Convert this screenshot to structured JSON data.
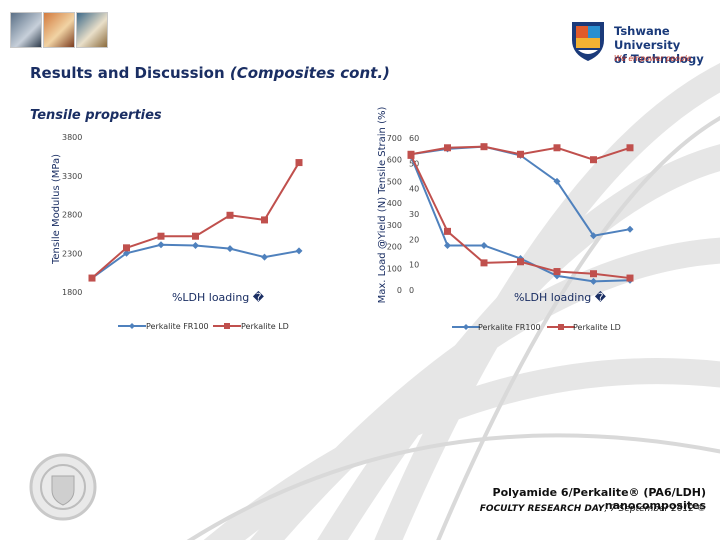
{
  "header": {
    "title": "Results and Discussion",
    "title_paren": "(Composites cont.)",
    "subtitle": "Tensile properties",
    "logo_line1": "Tshwane University",
    "logo_line2": "of Technology",
    "logo_tagline": "We empower people"
  },
  "footer": {
    "title": "Polyamide 6/Perkalite® (PA6/LDH) nanocomposites",
    "subtitle_bold": "FOCULTY RESEARCH DAY",
    "subtitle_rest": ", 7 September 2012 ©"
  },
  "colors": {
    "fr100": "#4f81bd",
    "ld": "#c0504d",
    "navy": "#1a2e63"
  },
  "chart_data": [
    {
      "type": "line",
      "ylabel": "Tensile Modulus (MPa)",
      "xlabel": "%LDH loading �",
      "ylim": [
        1800,
        3800
      ],
      "yticks": [
        "3800",
        "3300",
        "2800",
        "2300",
        "1800"
      ],
      "x": [
        0,
        1,
        2,
        3,
        4,
        5,
        6
      ],
      "series": [
        {
          "name": "Perkalite FR100",
          "values": [
            1980,
            2300,
            2410,
            2400,
            2360,
            2250,
            2330
          ]
        },
        {
          "name": "Perkalite LD",
          "values": [
            1980,
            2370,
            2520,
            2520,
            2790,
            2730,
            3470
          ]
        }
      ],
      "legend": "bottom"
    },
    {
      "type": "line",
      "ylabel": "Max. Load @Yield (N) Tensile Strain (%)",
      "xlabel": "%LDH loading �",
      "ylim": [
        0,
        700
      ],
      "yticks_left": [
        "700",
        "600",
        "500",
        "400",
        "300",
        "200",
        "100",
        "0"
      ],
      "yticks_right": [
        "60",
        "50",
        "40",
        "30",
        "20",
        "10",
        "0"
      ],
      "x": [
        0,
        1,
        2,
        3,
        4,
        5,
        6
      ],
      "series": [
        {
          "name": "Perkalite FR100",
          "values": [
            625,
            650,
            660,
            620,
            500,
            250,
            280
          ]
        },
        {
          "name": "Perkalite LD",
          "values": [
            625,
            655,
            660,
            625,
            655,
            600,
            655
          ]
        },
        {
          "name": "Perkalite FR100",
          "values": [
            615,
            205,
            205,
            145,
            65,
            40,
            45
          ]
        },
        {
          "name": "Perkalite LD",
          "values": [
            620,
            270,
            125,
            130,
            85,
            75,
            55
          ]
        }
      ],
      "legend": "bottom"
    }
  ]
}
